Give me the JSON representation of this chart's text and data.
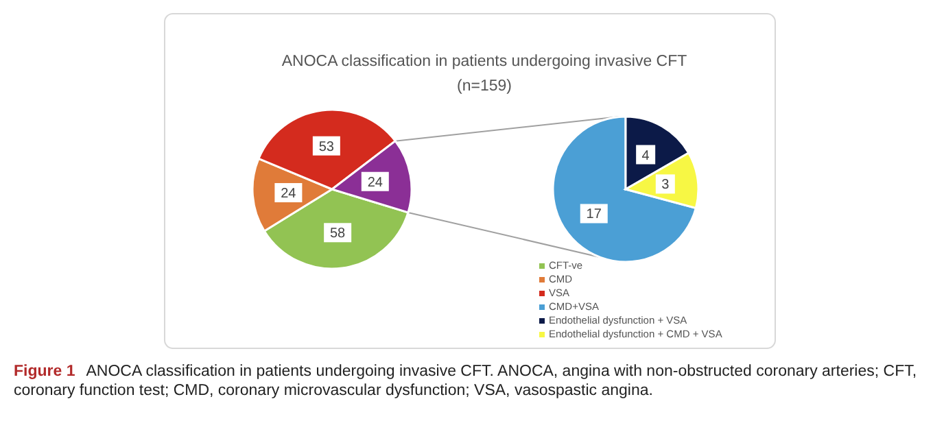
{
  "chart_data": [
    {
      "type": "pie",
      "title": "ANOCA classification in patients undergoing  invasive CFT",
      "subtitle": "(n=159)",
      "categories": [
        "CFT-ve",
        "CMD",
        "VSA",
        null
      ],
      "values": [
        58,
        24,
        53,
        24
      ],
      "colors": [
        "#92c353",
        "#e07b39",
        "#d42b1e",
        "#8b2f96"
      ],
      "data_labels": true,
      "legend": "bottom right",
      "annotations": [
        "Figure 1",
        "ANOCA classification in patients undergoing invasive CFT. ANOCA, angina with non-obstructed coronary arteries; CFT, coronary function test; CMD, coronary microvascular dysfunction; VSA, vasospastic angina."
      ]
    },
    {
      "type": "pie",
      "categories": [
        "CMD+VSA",
        "Endothelial dysfunction + VSA",
        "Endothelial dysfunction + CMD + VSA"
      ],
      "values": [
        17,
        4,
        3
      ],
      "colors": [
        "#4b9fd5",
        "#0c1a48",
        "#f7f744"
      ],
      "data_labels": true,
      "legend": "bottom right"
    }
  ]
}
